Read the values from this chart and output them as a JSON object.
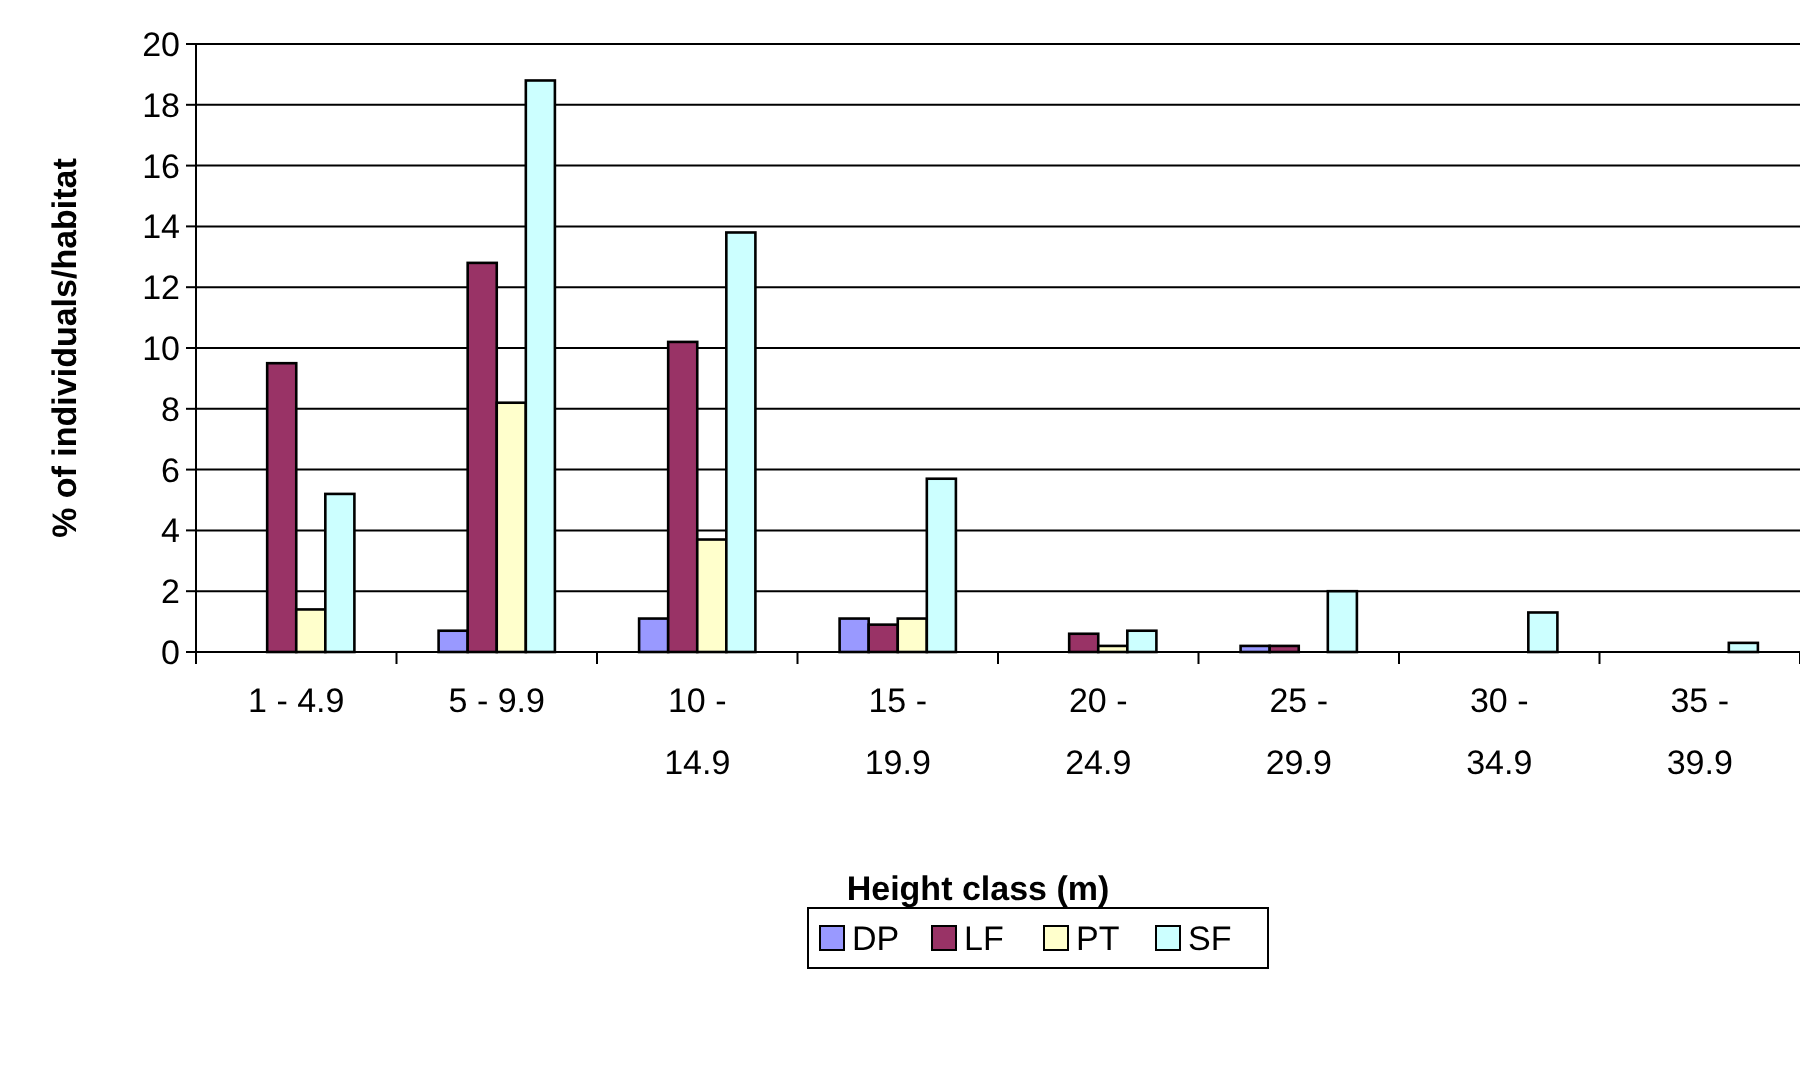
{
  "chart_data": {
    "type": "bar",
    "xlabel": "Height class (m)",
    "ylabel": "% of individuals/habitat",
    "categories": [
      "1 - 4.9",
      "5 - 9.9",
      "10 - 14.9",
      "15 - 19.9",
      "20 - 24.9",
      "25 - 29.9",
      "30 - 34.9",
      "35 - 39.9"
    ],
    "series": [
      {
        "name": "DP",
        "color": "#9999ff",
        "values": [
          0,
          0.7,
          1.1,
          1.1,
          0,
          0.2,
          0,
          0
        ]
      },
      {
        "name": "LF",
        "color": "#993366",
        "values": [
          9.5,
          12.8,
          10.2,
          0.9,
          0.6,
          0.2,
          0,
          0
        ]
      },
      {
        "name": "PT",
        "color": "#ffffcc",
        "values": [
          1.4,
          8.2,
          3.7,
          1.1,
          0.2,
          0,
          0,
          0
        ]
      },
      {
        "name": "SF",
        "color": "#ccffff",
        "values": [
          5.2,
          18.8,
          13.8,
          5.7,
          0.7,
          2.0,
          1.3,
          0.3
        ]
      }
    ],
    "ylim": [
      0,
      20
    ],
    "yticks": [
      0,
      2,
      4,
      6,
      8,
      10,
      12,
      14,
      16,
      18,
      20
    ],
    "grid": "y",
    "legend": "bottom"
  }
}
